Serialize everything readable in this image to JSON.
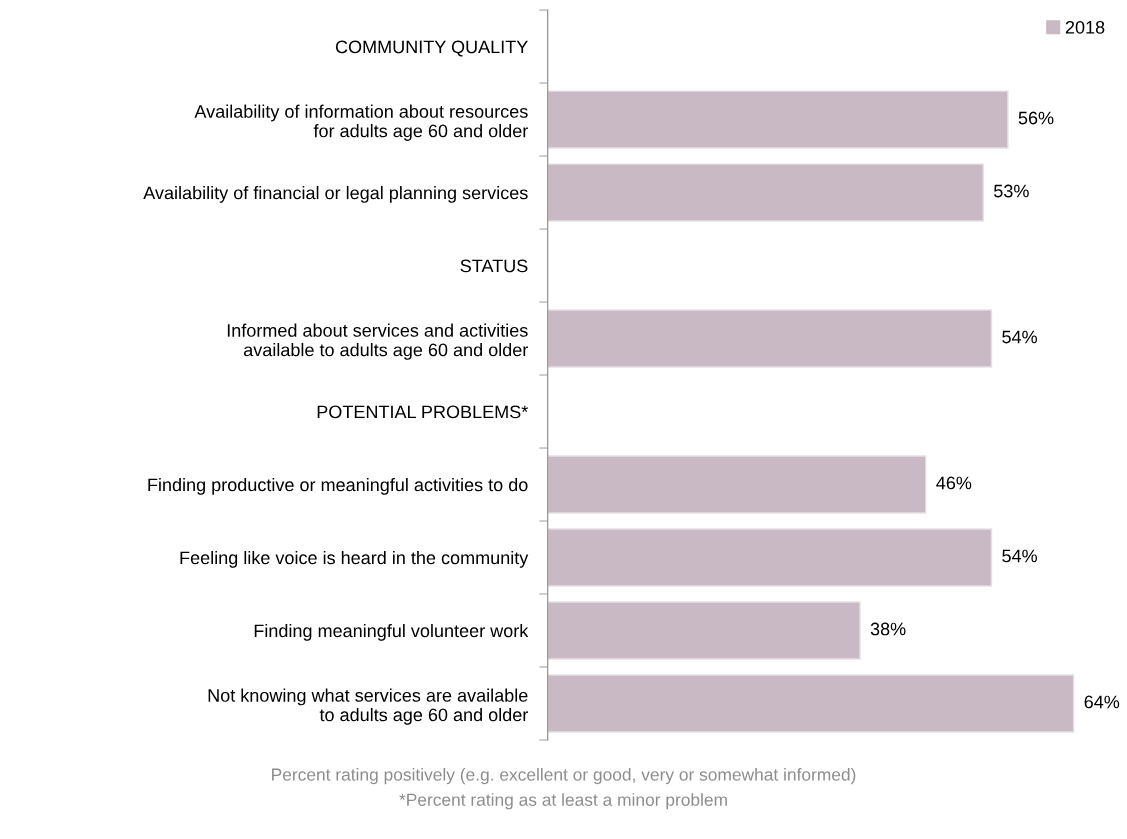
{
  "chart_data": {
    "type": "bar",
    "orientation": "horizontal",
    "categories": [
      "COMMUNITY QUALITY",
      "Availability of information about resources\nfor adults age 60 and older",
      "Availability of financial or legal planning services",
      "STATUS",
      "Informed about services and activities\navailable to adults age 60 and older",
      "POTENTIAL PROBLEMS*",
      "Finding productive or meaningful activities to do",
      "Feeling like voice is heard in the community",
      "Finding meaningful volunteer work",
      "Not knowing what services are available\nto adults age 60 and older"
    ],
    "series": [
      {
        "name": "2018",
        "color": "#c9b9c4",
        "values": [
          null,
          56,
          53,
          null,
          54,
          null,
          46,
          54,
          38,
          64
        ],
        "value_labels": [
          null,
          "56%",
          "53%",
          null,
          "54%",
          null,
          "46%",
          "54%",
          "38%",
          "64%"
        ]
      }
    ],
    "legend": "top right",
    "annotations": [
      "Percent rating positively (e.g. excellent or good, very or somewhat informed)",
      "*Percent rating as at least a minor problem"
    ]
  }
}
